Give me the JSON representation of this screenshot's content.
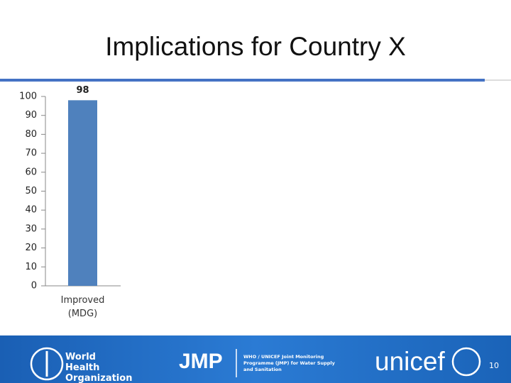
{
  "chart_data": {
    "type": "bar",
    "title": "Implications for Country X",
    "categories": [
      "Improved (MDG)"
    ],
    "values": [
      98
    ],
    "color": "#4f81bd",
    "ylim": [
      0,
      100
    ],
    "yticks": [
      0,
      10,
      20,
      30,
      40,
      50,
      60,
      70,
      80,
      90,
      100
    ]
  },
  "footer": {
    "who": "World Health Organization",
    "jmp": "JMP",
    "jmp_description": "WHO / UNICEF Joint Monitoring Programme (JMP) for Water Supply and Sanitation",
    "unicef": "unicef",
    "page_number": "10"
  }
}
